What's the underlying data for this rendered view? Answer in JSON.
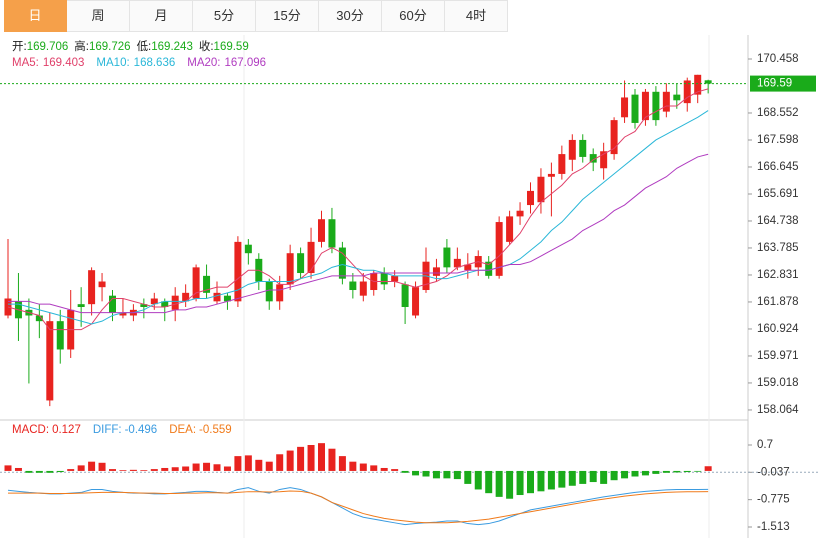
{
  "tabs": [
    "日",
    "周",
    "月",
    "5分",
    "15分",
    "30分",
    "60分",
    "4时"
  ],
  "chart_data": [
    {
      "type": "candlestick",
      "header_labels": [
        "开:",
        "高:",
        "低:",
        "收:"
      ],
      "up_color": "#e8231f",
      "down_color": "#1aab1a",
      "open": [
        161.4,
        161.9,
        161.6,
        161.4,
        158.4,
        161.2,
        160.2,
        161.8,
        161.8,
        162.4,
        162.1,
        161.4,
        161.4,
        161.8,
        161.8,
        161.9,
        161.6,
        161.9,
        162.0,
        162.8,
        161.9,
        162.1,
        161.9,
        163.9,
        163.4,
        162.6,
        161.9,
        162.5,
        163.6,
        162.9,
        164.0,
        164.8,
        163.8,
        162.6,
        162.1,
        162.3,
        162.9,
        162.6,
        162.5,
        161.4,
        162.3,
        162.8,
        163.8,
        163.1,
        163.0,
        163.1,
        163.3,
        162.8,
        164.0,
        164.9,
        165.3,
        165.4,
        166.3,
        166.4,
        166.9,
        167.6,
        167.1,
        166.6,
        167.1,
        168.4,
        169.2,
        168.3,
        169.3,
        168.6,
        169.2,
        168.9,
        169.2,
        169.706
      ],
      "high": [
        164.1,
        162.9,
        162.0,
        161.8,
        161.5,
        161.6,
        162.3,
        162.4,
        163.1,
        162.9,
        162.3,
        162.0,
        161.8,
        162.0,
        162.2,
        162.0,
        162.4,
        162.5,
        163.2,
        163.2,
        162.6,
        162.2,
        164.2,
        164.1,
        163.6,
        162.7,
        162.8,
        163.9,
        163.8,
        164.5,
        165.1,
        165.2,
        164.0,
        162.9,
        162.9,
        163.0,
        163.1,
        163.0,
        162.6,
        162.6,
        163.8,
        163.4,
        164.1,
        163.8,
        163.6,
        163.7,
        163.5,
        164.9,
        165.1,
        165.4,
        166.1,
        166.6,
        166.8,
        167.4,
        167.8,
        167.8,
        167.3,
        167.5,
        168.4,
        169.7,
        169.4,
        169.4,
        169.5,
        169.6,
        169.6,
        169.8,
        169.9,
        169.726
      ],
      "low": [
        161.3,
        160.5,
        159.0,
        160.6,
        158.2,
        159.7,
        159.9,
        161.0,
        161.4,
        161.9,
        161.2,
        161.3,
        161.2,
        161.3,
        161.6,
        161.2,
        161.2,
        161.7,
        161.9,
        162.0,
        161.8,
        161.6,
        161.7,
        163.2,
        162.3,
        161.6,
        161.6,
        162.3,
        162.7,
        162.7,
        163.8,
        163.6,
        162.5,
        162.0,
        161.9,
        162.1,
        162.3,
        162.4,
        161.1,
        161.3,
        162.2,
        162.6,
        162.9,
        163.0,
        162.7,
        162.8,
        162.7,
        162.7,
        163.9,
        164.6,
        165.0,
        165.0,
        164.9,
        166.2,
        166.5,
        166.8,
        166.5,
        166.2,
        166.9,
        168.2,
        168.0,
        168.1,
        168.1,
        168.4,
        168.7,
        168.6,
        168.9,
        169.243
      ],
      "close": [
        162.0,
        161.3,
        161.4,
        161.2,
        161.2,
        160.2,
        161.6,
        161.7,
        163.0,
        162.6,
        161.5,
        161.5,
        161.6,
        161.7,
        162.0,
        161.7,
        162.1,
        162.2,
        163.1,
        162.2,
        162.2,
        161.9,
        164.0,
        163.6,
        162.6,
        161.9,
        162.5,
        163.6,
        162.9,
        164.0,
        164.8,
        163.8,
        162.7,
        162.3,
        162.6,
        162.9,
        162.5,
        162.8,
        161.7,
        162.4,
        163.3,
        163.1,
        163.1,
        163.4,
        163.2,
        163.5,
        162.8,
        164.7,
        164.9,
        165.1,
        165.8,
        166.3,
        166.4,
        167.1,
        167.6,
        167.0,
        166.8,
        167.2,
        168.3,
        169.1,
        168.2,
        169.3,
        168.3,
        169.3,
        169.0,
        169.7,
        169.9,
        169.59
      ],
      "series": [
        {
          "name": "MA5:",
          "color": "#e0406a",
          "values": [
            161.7,
            161.6,
            161.5,
            161.4,
            160.9,
            160.9,
            160.9,
            160.9,
            161.1,
            161.6,
            162.0,
            162.0,
            161.9,
            161.8,
            161.7,
            161.7,
            161.8,
            161.9,
            162.2,
            162.3,
            162.4,
            162.4,
            162.7,
            163.0,
            163.0,
            162.8,
            162.5,
            162.5,
            162.7,
            163.0,
            163.6,
            163.8,
            163.6,
            163.2,
            162.8,
            162.6,
            162.6,
            162.6,
            162.5,
            162.4,
            162.5,
            162.6,
            162.8,
            163.1,
            163.2,
            163.3,
            163.2,
            163.5,
            163.9,
            164.3,
            164.9,
            165.4,
            165.7,
            166.0,
            166.4,
            166.6,
            166.9,
            167.1,
            167.3,
            167.7,
            167.9,
            168.4,
            168.6,
            168.8,
            168.8,
            169.1,
            169.3,
            169.403
          ]
        },
        {
          "name": "MA10:",
          "color": "#2ab7d8",
          "values": [
            161.8,
            161.8,
            161.7,
            161.6,
            161.5,
            161.4,
            161.3,
            161.2,
            161.1,
            161.2,
            161.4,
            161.5,
            161.5,
            161.6,
            161.8,
            161.9,
            161.9,
            161.9,
            162.0,
            162.0,
            162.1,
            162.2,
            162.3,
            162.5,
            162.6,
            162.6,
            162.6,
            162.6,
            162.7,
            162.8,
            162.9,
            163.1,
            163.2,
            163.1,
            163.0,
            163.0,
            162.9,
            162.8,
            162.8,
            162.8,
            162.8,
            162.7,
            162.7,
            162.8,
            162.9,
            163.0,
            163.0,
            163.1,
            163.2,
            163.4,
            163.7,
            164.0,
            164.4,
            164.7,
            165.1,
            165.5,
            165.8,
            166.1,
            166.4,
            166.7,
            167.0,
            167.3,
            167.6,
            167.8,
            168.0,
            168.2,
            168.4,
            168.636
          ]
        },
        {
          "name": "MA20:",
          "color": "#b03cc0",
          "values": [
            161.9,
            161.9,
            161.9,
            161.8,
            161.8,
            161.7,
            161.6,
            161.5,
            161.5,
            161.5,
            161.5,
            161.5,
            161.5,
            161.5,
            161.5,
            161.5,
            161.6,
            161.6,
            161.7,
            161.7,
            161.8,
            161.9,
            162.0,
            162.1,
            162.2,
            162.3,
            162.3,
            162.4,
            162.5,
            162.6,
            162.7,
            162.8,
            162.8,
            162.8,
            162.8,
            162.9,
            162.9,
            162.9,
            162.9,
            162.9,
            162.9,
            162.9,
            162.9,
            162.9,
            163.0,
            163.0,
            163.0,
            163.1,
            163.2,
            163.2,
            163.3,
            163.5,
            163.7,
            163.9,
            164.1,
            164.4,
            164.6,
            164.8,
            165.1,
            165.3,
            165.6,
            165.9,
            166.1,
            166.3,
            166.6,
            166.8,
            167.0,
            167.096
          ]
        }
      ],
      "ylim": [
        157.78,
        171.306
      ],
      "yticks": [
        170.458,
        168.552,
        167.598,
        166.645,
        165.691,
        164.738,
        163.785,
        162.831,
        161.878,
        160.924,
        159.971,
        159.018,
        158.064
      ]
    },
    {
      "type": "macd",
      "ylim": [
        -1.729,
        1.159
      ],
      "yticks": [
        0.7,
        -0.037,
        -0.775,
        -1.513
      ],
      "histogram": {
        "name": "MACD:",
        "up_color": "#e8231f",
        "down_color": "#1aab1a",
        "values": [
          0.15,
          0.08,
          -0.05,
          -0.05,
          -0.05,
          -0.03,
          0.05,
          0.15,
          0.25,
          0.22,
          0.05,
          0.02,
          0.03,
          0.02,
          0.05,
          0.08,
          0.1,
          0.12,
          0.2,
          0.22,
          0.18,
          0.12,
          0.4,
          0.42,
          0.3,
          0.25,
          0.45,
          0.55,
          0.65,
          0.7,
          0.75,
          0.6,
          0.4,
          0.25,
          0.2,
          0.15,
          0.08,
          0.05,
          -0.05,
          -0.12,
          -0.15,
          -0.2,
          -0.2,
          -0.22,
          -0.35,
          -0.5,
          -0.6,
          -0.7,
          -0.75,
          -0.65,
          -0.6,
          -0.55,
          -0.5,
          -0.45,
          -0.4,
          -0.35,
          -0.3,
          -0.35,
          -0.25,
          -0.2,
          -0.15,
          -0.12,
          -0.08,
          -0.05,
          -0.04,
          -0.03,
          -0.02,
          0.127
        ]
      },
      "series": [
        {
          "name": "DIFF:",
          "color": "#3a9be0",
          "values": [
            -0.52,
            -0.55,
            -0.58,
            -0.6,
            -0.62,
            -0.62,
            -0.6,
            -0.58,
            -0.5,
            -0.5,
            -0.55,
            -0.58,
            -0.6,
            -0.6,
            -0.62,
            -0.62,
            -0.6,
            -0.58,
            -0.55,
            -0.55,
            -0.58,
            -0.6,
            -0.5,
            -0.45,
            -0.55,
            -0.6,
            -0.5,
            -0.45,
            -0.5,
            -0.6,
            -0.7,
            -0.85,
            -1.0,
            -1.15,
            -1.25,
            -1.3,
            -1.35,
            -1.4,
            -1.45,
            -1.42,
            -1.4,
            -1.38,
            -1.35,
            -1.35,
            -1.42,
            -1.45,
            -1.42,
            -1.35,
            -1.25,
            -1.15,
            -1.05,
            -1.0,
            -0.95,
            -0.9,
            -0.85,
            -0.8,
            -0.75,
            -0.7,
            -0.66,
            -0.62,
            -0.58,
            -0.55,
            -0.53,
            -0.51,
            -0.5,
            -0.5,
            -0.5,
            -0.496
          ]
        },
        {
          "name": "DEA:",
          "color": "#f07a1a",
          "values": [
            -0.6,
            -0.6,
            -0.6,
            -0.6,
            -0.61,
            -0.61,
            -0.61,
            -0.6,
            -0.59,
            -0.58,
            -0.58,
            -0.58,
            -0.59,
            -0.6,
            -0.6,
            -0.61,
            -0.61,
            -0.6,
            -0.6,
            -0.59,
            -0.59,
            -0.6,
            -0.58,
            -0.56,
            -0.56,
            -0.57,
            -0.56,
            -0.54,
            -0.55,
            -0.6,
            -0.7,
            -0.85,
            -0.95,
            -1.05,
            -1.15,
            -1.22,
            -1.28,
            -1.32,
            -1.35,
            -1.38,
            -1.4,
            -1.4,
            -1.4,
            -1.38,
            -1.36,
            -1.33,
            -1.3,
            -1.25,
            -1.2,
            -1.15,
            -1.1,
            -1.05,
            -1.0,
            -0.95,
            -0.9,
            -0.85,
            -0.8,
            -0.76,
            -0.72,
            -0.68,
            -0.65,
            -0.62,
            -0.6,
            -0.58,
            -0.57,
            -0.56,
            -0.56,
            -0.559
          ]
        }
      ]
    }
  ]
}
